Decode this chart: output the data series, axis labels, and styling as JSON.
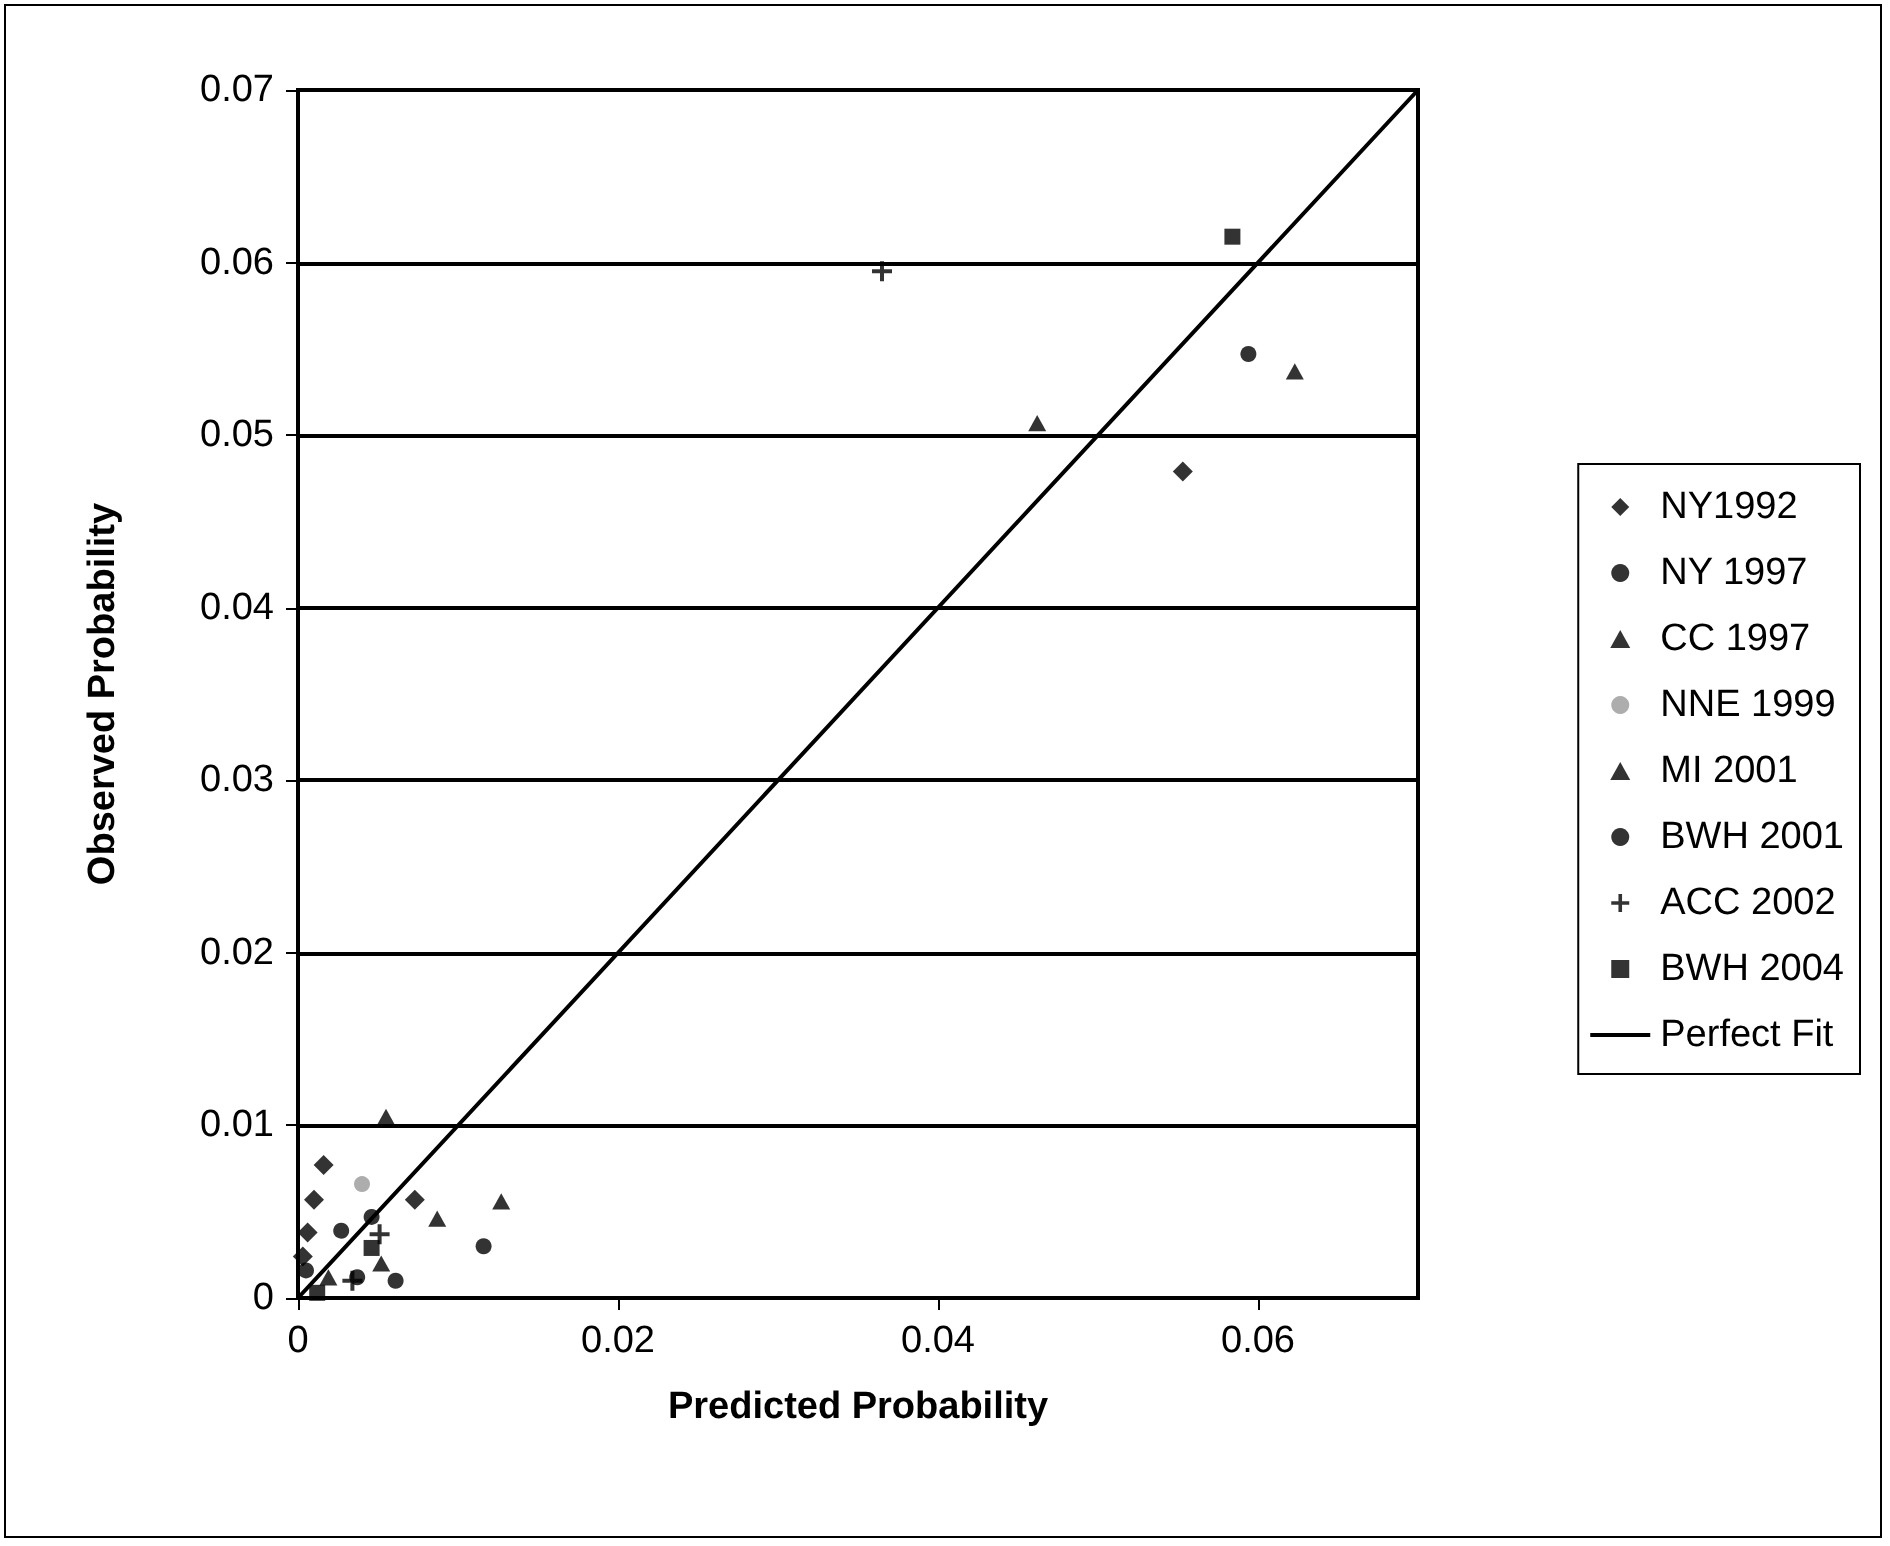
{
  "chart_data": {
    "type": "scatter",
    "xlabel": "Predicted Probability",
    "ylabel": "Observed Probability",
    "xlim": [
      0,
      0.07
    ],
    "ylim": [
      0,
      0.07
    ],
    "xticks": [
      0,
      0.02,
      0.04,
      0.06
    ],
    "yticks": [
      0,
      0.01,
      0.02,
      0.03,
      0.04,
      0.05,
      0.06,
      0.07
    ],
    "grid": "y",
    "legend": "right",
    "series": [
      {
        "name": "NY1992",
        "color": "#000000",
        "marker": "diamond",
        "x": [
          0.0016,
          0.001,
          0.0006,
          0.0073,
          0.0003,
          0.0553
        ],
        "values": [
          0.0077,
          0.0057,
          0.0038,
          0.0057,
          0.0024,
          0.0479
        ]
      },
      {
        "name": "NY 1997",
        "color": "#000000",
        "marker": "circle",
        "x": [
          0.0027,
          0.0046,
          0.0594,
          0.0005
        ],
        "values": [
          0.0039,
          0.0047,
          0.0547,
          0.0016
        ]
      },
      {
        "name": "CC 1997",
        "color": "#000000",
        "marker": "triangle",
        "x": [
          0.0127,
          0.0087,
          0.0052,
          0.0623
        ],
        "values": [
          0.0056,
          0.0046,
          0.002,
          0.0537
        ]
      },
      {
        "name": "NNE 1999",
        "color": "#999999",
        "marker": "circle",
        "x": [
          0.004
        ],
        "values": [
          0.0066
        ]
      },
      {
        "name": "MI 2001",
        "color": "#000000",
        "marker": "triangle",
        "x": [
          0.0055,
          0.0019,
          0.0462
        ],
        "values": [
          0.0105,
          0.0012,
          0.0507
        ]
      },
      {
        "name": "BWH 2001",
        "color": "#000000",
        "marker": "circle",
        "x": [
          0.0116,
          0.0061,
          0.0037
        ],
        "values": [
          0.003,
          0.001,
          0.0012
        ]
      },
      {
        "name": "ACC 2002",
        "color": "#000000",
        "marker": "cross",
        "x": [
          0.0051,
          0.0034,
          0.0365
        ],
        "values": [
          0.0037,
          0.001,
          0.0595
        ]
      },
      {
        "name": "BWH 2004",
        "color": "#000000",
        "marker": "square",
        "x": [
          0.0046,
          0.0584,
          0.0012
        ],
        "values": [
          0.0029,
          0.0615,
          0.0003
        ]
      },
      {
        "name": "Perfect Fit",
        "type": "line",
        "color": "#000000",
        "marker": "none",
        "line_style": "solid",
        "x": [
          0,
          0.07
        ],
        "values": [
          0,
          0.07
        ]
      }
    ]
  }
}
